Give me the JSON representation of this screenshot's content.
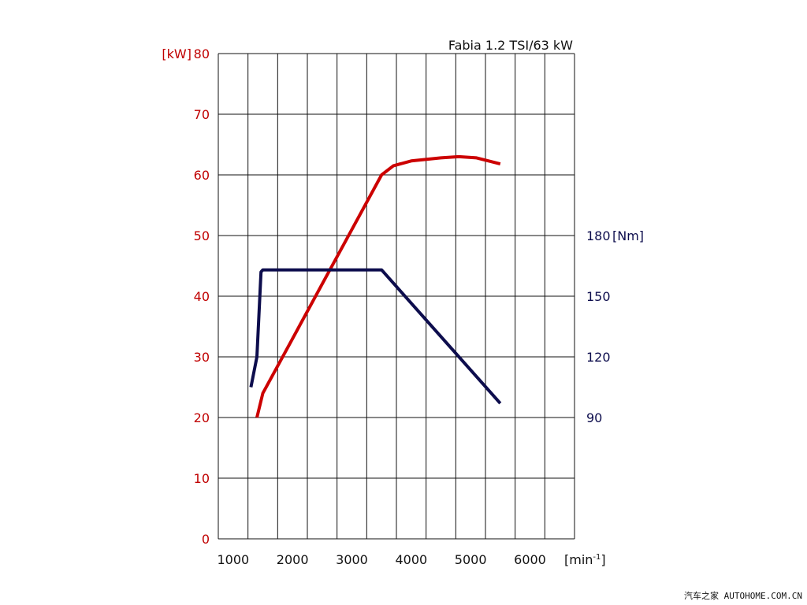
{
  "chart_data": {
    "type": "line",
    "title": "Fabia 1.2 TSI/63 kW",
    "x_unit": "[min",
    "x_unit_sup": "-1",
    "x_unit_close": "]",
    "xlim": [
      750,
      6750
    ],
    "x_ticks": [
      1000,
      2000,
      3000,
      4000,
      5000,
      6000
    ],
    "y_left": {
      "unit": "[kW]",
      "ylim": [
        0,
        80
      ],
      "ticks": [
        0,
        10,
        20,
        30,
        40,
        50,
        60,
        70,
        80
      ]
    },
    "y_right": {
      "unit": "[Nm]",
      "ticks": [
        90,
        120,
        150,
        180
      ]
    },
    "grid": true,
    "series": [
      {
        "axis": "left",
        "color": "#cc0000",
        "points": [
          [
            1400,
            20
          ],
          [
            1500,
            24
          ],
          [
            2000,
            33
          ],
          [
            2500,
            42
          ],
          [
            3000,
            51
          ],
          [
            3500,
            60
          ],
          [
            3700,
            61.5
          ],
          [
            4000,
            62.3
          ],
          [
            4500,
            62.8
          ],
          [
            4800,
            63
          ],
          [
            5100,
            62.8
          ],
          [
            5500,
            61.8
          ]
        ]
      },
      {
        "axis": "right",
        "color": "#0d0d4d",
        "points": [
          [
            1300,
            105
          ],
          [
            1400,
            120
          ],
          [
            1470,
            162
          ],
          [
            1500,
            163
          ],
          [
            2000,
            163
          ],
          [
            3000,
            163
          ],
          [
            3500,
            163
          ],
          [
            5500,
            97
          ]
        ]
      }
    ]
  },
  "colors": {
    "left_axis": "#c00000",
    "right_axis": "#0d0d4d",
    "grid": "#111111"
  },
  "watermark": "汽车之家 AUTOHOME.COM.CN"
}
